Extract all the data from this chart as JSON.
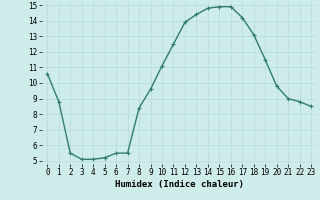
{
  "x": [
    0,
    1,
    2,
    3,
    4,
    5,
    6,
    7,
    8,
    9,
    10,
    11,
    12,
    13,
    14,
    15,
    16,
    17,
    18,
    19,
    20,
    21,
    22,
    23
  ],
  "y": [
    10.6,
    8.8,
    5.5,
    5.1,
    5.1,
    5.2,
    5.5,
    5.5,
    8.4,
    9.6,
    11.1,
    12.5,
    13.9,
    14.4,
    14.8,
    14.9,
    14.9,
    14.2,
    13.1,
    11.5,
    9.8,
    9.0,
    8.8,
    8.5
  ],
  "line_color": "#2e7d6e",
  "marker": "+",
  "marker_size": 3,
  "marker_lw": 0.8,
  "bg_color": "#ceecea",
  "grid_color": "#b8dbd8",
  "xlabel": "Humidex (Indice chaleur)",
  "xlim_min": -0.5,
  "xlim_max": 23.5,
  "ylim_min": 4.8,
  "ylim_max": 15.2,
  "yticks": [
    5,
    6,
    7,
    8,
    9,
    10,
    11,
    12,
    13,
    14,
    15
  ],
  "xticks": [
    0,
    1,
    2,
    3,
    4,
    5,
    6,
    7,
    8,
    9,
    10,
    11,
    12,
    13,
    14,
    15,
    16,
    17,
    18,
    19,
    20,
    21,
    22,
    23
  ],
  "tick_fontsize": 5.5,
  "label_fontsize": 6.5,
  "line_width": 1.0
}
